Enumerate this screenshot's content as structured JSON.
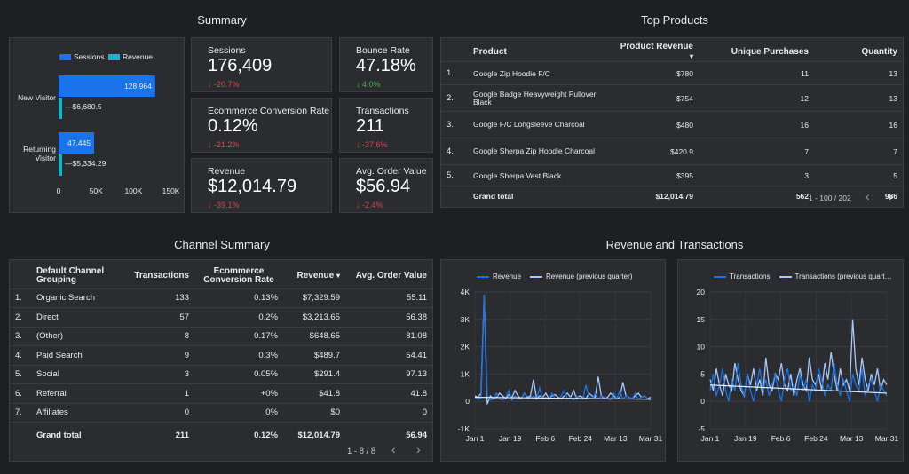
{
  "titles": {
    "summary": "Summary",
    "top_products": "Top Products",
    "channel_summary": "Channel Summary",
    "rev_trans": "Revenue and Transactions"
  },
  "kpis": [
    {
      "label": "Sessions",
      "value": "176,409",
      "delta": "↓ -20.7%",
      "dir": "neg"
    },
    {
      "label": "Bounce Rate",
      "value": "47.18%",
      "delta": "↓ 4.0%",
      "dir": "pos"
    },
    {
      "label": "Ecommerce Conversion Rate",
      "value": "0.12%",
      "delta": "↓ -21.2%",
      "dir": "neg"
    },
    {
      "label": "Transactions",
      "value": "211",
      "delta": "↓ -37.6%",
      "dir": "neg"
    },
    {
      "label": "Revenue",
      "value": "$12,014.79",
      "delta": "↓ -39.1%",
      "dir": "neg"
    },
    {
      "label": "Avg. Order Value",
      "value": "$56.94",
      "delta": "↓ -2.4%",
      "dir": "neg"
    }
  ],
  "visitor_chart": {
    "legend": [
      "Sessions",
      "Revenue"
    ],
    "colors": {
      "sessions": "#1a73e8",
      "revenue": "#12b5cb"
    },
    "categories": [
      "New Visitor",
      "Returning Visitor"
    ],
    "sessions": [
      128964,
      47445
    ],
    "revenue": [
      6680.5,
      5334.29
    ],
    "sessions_labels": [
      "128,964",
      "47,445"
    ],
    "revenue_labels": [
      "$6,680.5",
      "$5,334.29"
    ],
    "ticks": [
      "0",
      "50K",
      "100K",
      "150K"
    ]
  },
  "top_products": {
    "headers": [
      "Product",
      "Product Revenue",
      "Unique Purchases",
      "Quantity"
    ],
    "sort_icon": "▾",
    "rows": [
      {
        "n": "1.",
        "product": "Google Zip Hoodie F/C",
        "revenue": "$780",
        "unique": "11",
        "qty": "13"
      },
      {
        "n": "2.",
        "product": "Google Badge Heavyweight Pullover Black",
        "revenue": "$754",
        "unique": "12",
        "qty": "13"
      },
      {
        "n": "3.",
        "product": "Google F/C Longsleeve Charcoal",
        "revenue": "$480",
        "unique": "16",
        "qty": "16"
      },
      {
        "n": "4.",
        "product": "Google Sherpa Zip Hoodie Charcoal",
        "revenue": "$420.9",
        "unique": "7",
        "qty": "7"
      },
      {
        "n": "5.",
        "product": "Google Sherpa Vest Black",
        "revenue": "$395",
        "unique": "3",
        "qty": "5"
      }
    ],
    "total": {
      "label": "Grand total",
      "revenue": "$12,014.79",
      "unique": "562",
      "qty": "986"
    },
    "pager": "1 - 100 / 202"
  },
  "channel": {
    "headers": [
      "Default Channel Grouping",
      "Transactions",
      "Ecommerce Conversion Rate",
      "Revenue",
      "Avg. Order Value"
    ],
    "sort_icon": "▾",
    "rows": [
      {
        "n": "1.",
        "ch": "Organic Search",
        "tr": "133",
        "cr": "0.13%",
        "rev": "$7,329.59",
        "aov": "55.11"
      },
      {
        "n": "2.",
        "ch": "Direct",
        "tr": "57",
        "cr": "0.2%",
        "rev": "$3,213.65",
        "aov": "56.38"
      },
      {
        "n": "3.",
        "ch": "(Other)",
        "tr": "8",
        "cr": "0.17%",
        "rev": "$648.65",
        "aov": "81.08"
      },
      {
        "n": "4.",
        "ch": "Paid Search",
        "tr": "9",
        "cr": "0.3%",
        "rev": "$489.7",
        "aov": "54.41"
      },
      {
        "n": "5.",
        "ch": "Social",
        "tr": "3",
        "cr": "0.05%",
        "rev": "$291.4",
        "aov": "97.13"
      },
      {
        "n": "6.",
        "ch": "Referral",
        "tr": "1",
        "cr": "+0%",
        "rev": "$41.8",
        "aov": "41.8"
      },
      {
        "n": "7.",
        "ch": "Affiliates",
        "tr": "0",
        "cr": "0%",
        "rev": "$0",
        "aov": "0"
      }
    ],
    "total": {
      "label": "Grand total",
      "tr": "211",
      "cr": "0.12%",
      "rev": "$12,014.79",
      "aov": "56.94"
    },
    "pager": "1 - 8 / 8"
  },
  "chart_data": [
    {
      "type": "line",
      "series": [
        {
          "name": "Revenue",
          "color": "#1a73e8",
          "values": [
            150,
            80,
            120,
            3900,
            200,
            50,
            100,
            300,
            80,
            60,
            150,
            400,
            50,
            200,
            100,
            80,
            300,
            100,
            150,
            200,
            80,
            500,
            100,
            150,
            60,
            300,
            100,
            80,
            200,
            400,
            100,
            150,
            50,
            200,
            100,
            80,
            600,
            150,
            100,
            300,
            80,
            200,
            150,
            100,
            50,
            300,
            100,
            400,
            80,
            200,
            150,
            100,
            300,
            80,
            150,
            200,
            100,
            50
          ]
        },
        {
          "name": "Revenue (previous quarter)",
          "color": "#a8c7fa",
          "values": [
            200,
            150,
            300,
            3900,
            -100,
            200,
            100,
            150,
            300,
            200,
            100,
            250,
            150,
            400,
            200,
            100,
            300,
            150,
            200,
            800,
            100,
            200,
            150,
            300,
            100,
            200,
            250,
            150,
            100,
            200,
            300,
            150,
            400,
            100,
            200,
            150,
            100,
            300,
            200,
            150,
            900,
            200,
            100,
            150,
            300,
            200,
            100,
            150,
            700,
            200,
            150,
            100,
            200,
            300,
            150,
            200,
            100,
            150
          ]
        }
      ],
      "x_ticks": [
        "Jan 1",
        "Jan 19",
        "Feb 6",
        "Feb 24",
        "Mar 13",
        "Mar 31"
      ],
      "y_ticks": [
        "4K",
        "3K",
        "2K",
        "1K",
        "0",
        "-1K"
      ],
      "ylim": [
        -1000,
        4000
      ]
    },
    {
      "type": "line",
      "series": [
        {
          "name": "Transactions",
          "color": "#1a73e8",
          "values": [
            2,
            5,
            1,
            3,
            6,
            2,
            0,
            4,
            2,
            7,
            3,
            1,
            5,
            2,
            0,
            3,
            6,
            2,
            4,
            1,
            3,
            5,
            2,
            0,
            4,
            6,
            2,
            3,
            1,
            5,
            2,
            4,
            0,
            3,
            2,
            6,
            4,
            1,
            3,
            2,
            7,
            3,
            1,
            4,
            2,
            0,
            5,
            3,
            2,
            6,
            1,
            3,
            4,
            2,
            0,
            3,
            2,
            1
          ]
        },
        {
          "name": "Transactions (previous quarter)",
          "color": "#a8c7fa",
          "values": [
            4,
            2,
            6,
            3,
            1,
            5,
            3,
            2,
            7,
            4,
            2,
            1,
            5,
            3,
            6,
            2,
            4,
            1,
            8,
            3,
            2,
            5,
            4,
            7,
            3,
            2,
            5,
            1,
            4,
            6,
            3,
            2,
            8,
            4,
            3,
            5,
            2,
            7,
            4,
            9,
            5,
            2,
            6,
            3,
            4,
            2,
            15,
            6,
            3,
            8,
            4,
            2,
            5,
            3,
            6,
            2,
            4,
            3
          ]
        }
      ],
      "x_ticks": [
        "Jan 1",
        "Jan 19",
        "Feb 6",
        "Feb 24",
        "Mar 13",
        "Mar 31"
      ],
      "y_ticks": [
        "20",
        "15",
        "10",
        "5",
        "0",
        "-5"
      ],
      "ylim": [
        -5,
        20
      ]
    }
  ]
}
